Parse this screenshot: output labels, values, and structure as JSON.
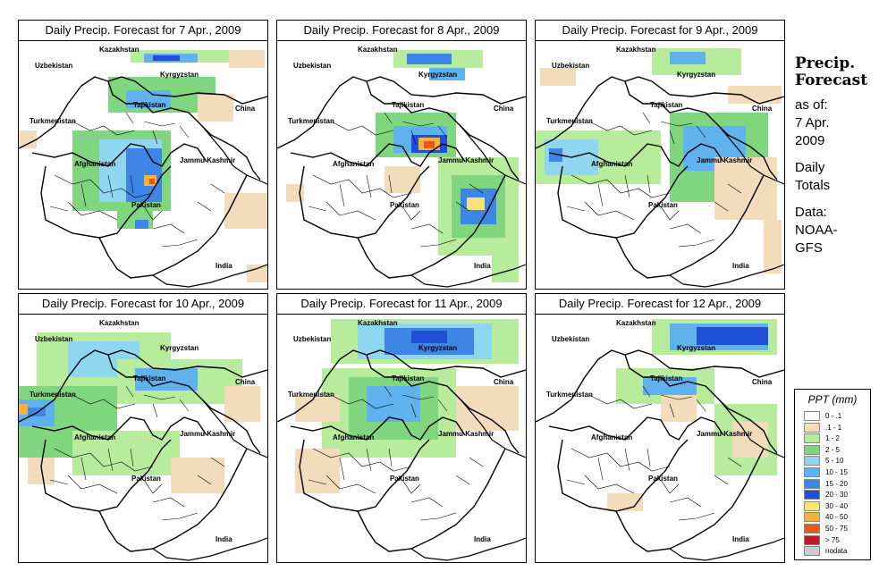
{
  "panels": [
    {
      "title": "Daily Precip. Forecast for  7 Apr., 2009"
    },
    {
      "title": "Daily Precip. Forecast for  8 Apr., 2009"
    },
    {
      "title": "Daily Precip. Forecast for  9 Apr., 2009"
    },
    {
      "title": "Daily Precip. Forecast for  10 Apr., 2009"
    },
    {
      "title": "Daily Precip. Forecast for  11 Apr., 2009"
    },
    {
      "title": "Daily Precip. Forecast for  12 Apr., 2009"
    }
  ],
  "map_labels": {
    "kazakhstan": "Kazakhstan",
    "uzbekistan": "Uzbekistan",
    "kyrgyzstan": "Kyrgyzstan",
    "tajikistan": "Tajikistan",
    "turkmenistan": "Turkmenistan",
    "china": "China",
    "afghanistan": "Afghanistan",
    "jammu_kashmir": "Jammu Kashmir",
    "pakistan": "Pakistan",
    "india": "India"
  },
  "side": {
    "title_line1": "Precip.",
    "title_line2": "Forecast",
    "asof1": "as of:",
    "asof2": "7 Apr.",
    "asof3": "2009",
    "daily1": "Daily",
    "daily2": "Totals",
    "data1": "Data:",
    "data2": "NOAA-",
    "data3": "GFS"
  },
  "legend": {
    "title": "PPT (mm)",
    "items": [
      {
        "label": "0 - .1",
        "color": "#ffffff"
      },
      {
        "label": ".1 - 1",
        "color": "#f2dcbc"
      },
      {
        "label": "1 - 2",
        "color": "#b7ec9c"
      },
      {
        "label": "2 - 5",
        "color": "#7fd67f"
      },
      {
        "label": "5 - 10",
        "color": "#8fd6f0"
      },
      {
        "label": "10 - 15",
        "color": "#5fb2ee"
      },
      {
        "label": "15 - 20",
        "color": "#3d86e6"
      },
      {
        "label": "20 - 30",
        "color": "#1f4fd6"
      },
      {
        "label": "30 - 40",
        "color": "#f8e27a"
      },
      {
        "label": "40 - 50",
        "color": "#f6b23a"
      },
      {
        "label": "50 - 75",
        "color": "#e8561e"
      },
      {
        "label": "> 75",
        "color": "#b81c1c"
      },
      {
        "label": "nodata",
        "color": "#cccccc"
      }
    ]
  }
}
